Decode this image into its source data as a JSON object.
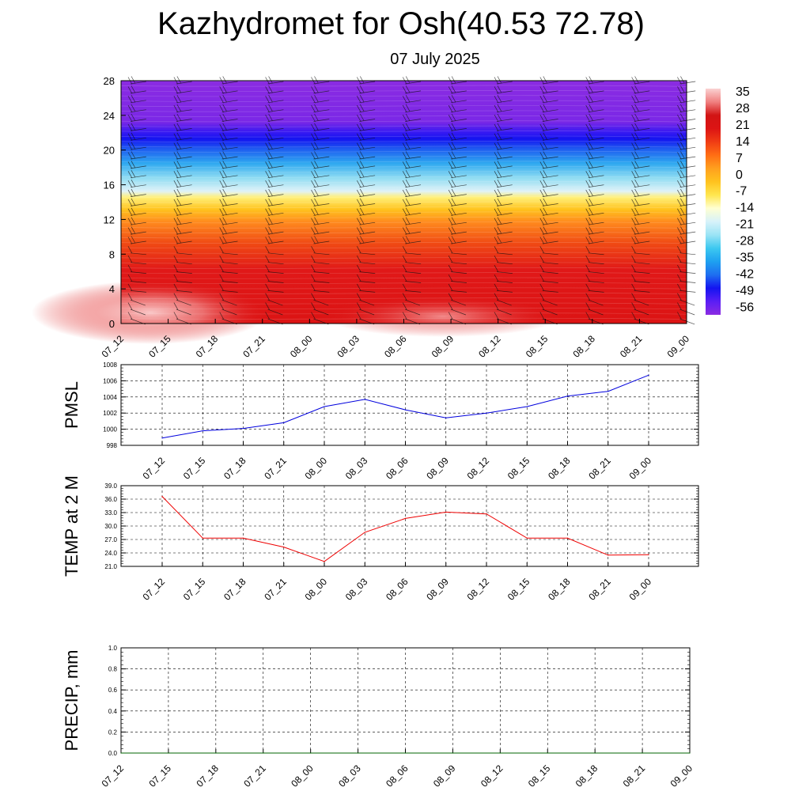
{
  "title": "Kazhydromet for Osh(40.53 72.78)",
  "subtitle": "07 July 2025",
  "chart_data": [
    {
      "type": "heatmap",
      "title": "",
      "ylim": [
        0,
        28
      ],
      "y_ticks": [
        "0",
        "4",
        "8",
        "12",
        "16",
        "20",
        "24",
        "28"
      ],
      "x_ticks": [
        "07_12",
        "07_15",
        "07_18",
        "07_21",
        "08_00",
        "08_03",
        "08_06",
        "08_09",
        "08_12",
        "08_15",
        "08_18",
        "08_21",
        "09_00"
      ],
      "colorbar_ticks": [
        "35",
        "28",
        "21",
        "14",
        "7",
        "0",
        "-7",
        "-14",
        "-21",
        "-28",
        "-35",
        "-42",
        "-49",
        "-56"
      ],
      "colorbar_range": [
        -60,
        38
      ],
      "colormap": [
        "#8b2be2",
        "#5a1ef5",
        "#1414f0",
        "#1e6ef0",
        "#1ea0f0",
        "#3cc8f0",
        "#9be4f5",
        "#d7f2fa",
        "#ffffd2",
        "#ffe650",
        "#ffc31e",
        "#ffa01e",
        "#ff6e14",
        "#f03c14",
        "#dc1414",
        "#d21414",
        "#f08080",
        "#fad2d2"
      ],
      "overlay": "wind barbs",
      "grid": false
    },
    {
      "type": "line",
      "ylabel": "PMSL",
      "x": [
        "07_12",
        "07_15",
        "07_18",
        "07_21",
        "08_00",
        "08_03",
        "08_06",
        "08_09",
        "08_12",
        "08_15",
        "08_18",
        "08_21",
        "09_00"
      ],
      "values": [
        998.9,
        999.8,
        1000.1,
        1000.8,
        1002.8,
        1003.7,
        1002.4,
        1001.4,
        1002.0,
        1002.8,
        1004.1,
        1004.7,
        1006.7
      ],
      "ylim": [
        998,
        1008
      ],
      "y_ticks": [
        "998",
        "1000",
        "1002",
        "1004",
        "1006",
        "1008"
      ],
      "color": "#0000dd",
      "grid": true
    },
    {
      "type": "line",
      "ylabel": "TEMP at 2 M",
      "x": [
        "07_12",
        "07_15",
        "07_18",
        "07_21",
        "08_00",
        "08_03",
        "08_06",
        "08_09",
        "08_12",
        "08_15",
        "08_18",
        "08_21",
        "09_00"
      ],
      "values": [
        36.6,
        27.3,
        27.3,
        25.3,
        22.1,
        28.6,
        31.7,
        33.1,
        32.7,
        27.3,
        27.3,
        23.5,
        23.6
      ],
      "ylim": [
        21.0,
        39.0
      ],
      "y_ticks": [
        "21.0",
        "24.0",
        "27.0",
        "30.0",
        "33.0",
        "36.0",
        "39.0"
      ],
      "color": "#ee0000",
      "grid": true
    },
    {
      "type": "line",
      "ylabel": "PRECIP, mm",
      "x": [
        "07_12",
        "07_15",
        "07_18",
        "07_21",
        "08_00",
        "08_03",
        "08_06",
        "08_09",
        "08_12",
        "08_15",
        "08_18",
        "08_21",
        "09_00"
      ],
      "values": [
        0,
        0,
        0,
        0,
        0,
        0,
        0,
        0,
        0,
        0,
        0,
        0,
        0
      ],
      "ylim": [
        0.0,
        1.0
      ],
      "y_ticks": [
        "0.0",
        "0.2",
        "0.4",
        "0.6",
        "0.8",
        "1.0"
      ],
      "color": "#006400",
      "grid": true
    }
  ]
}
